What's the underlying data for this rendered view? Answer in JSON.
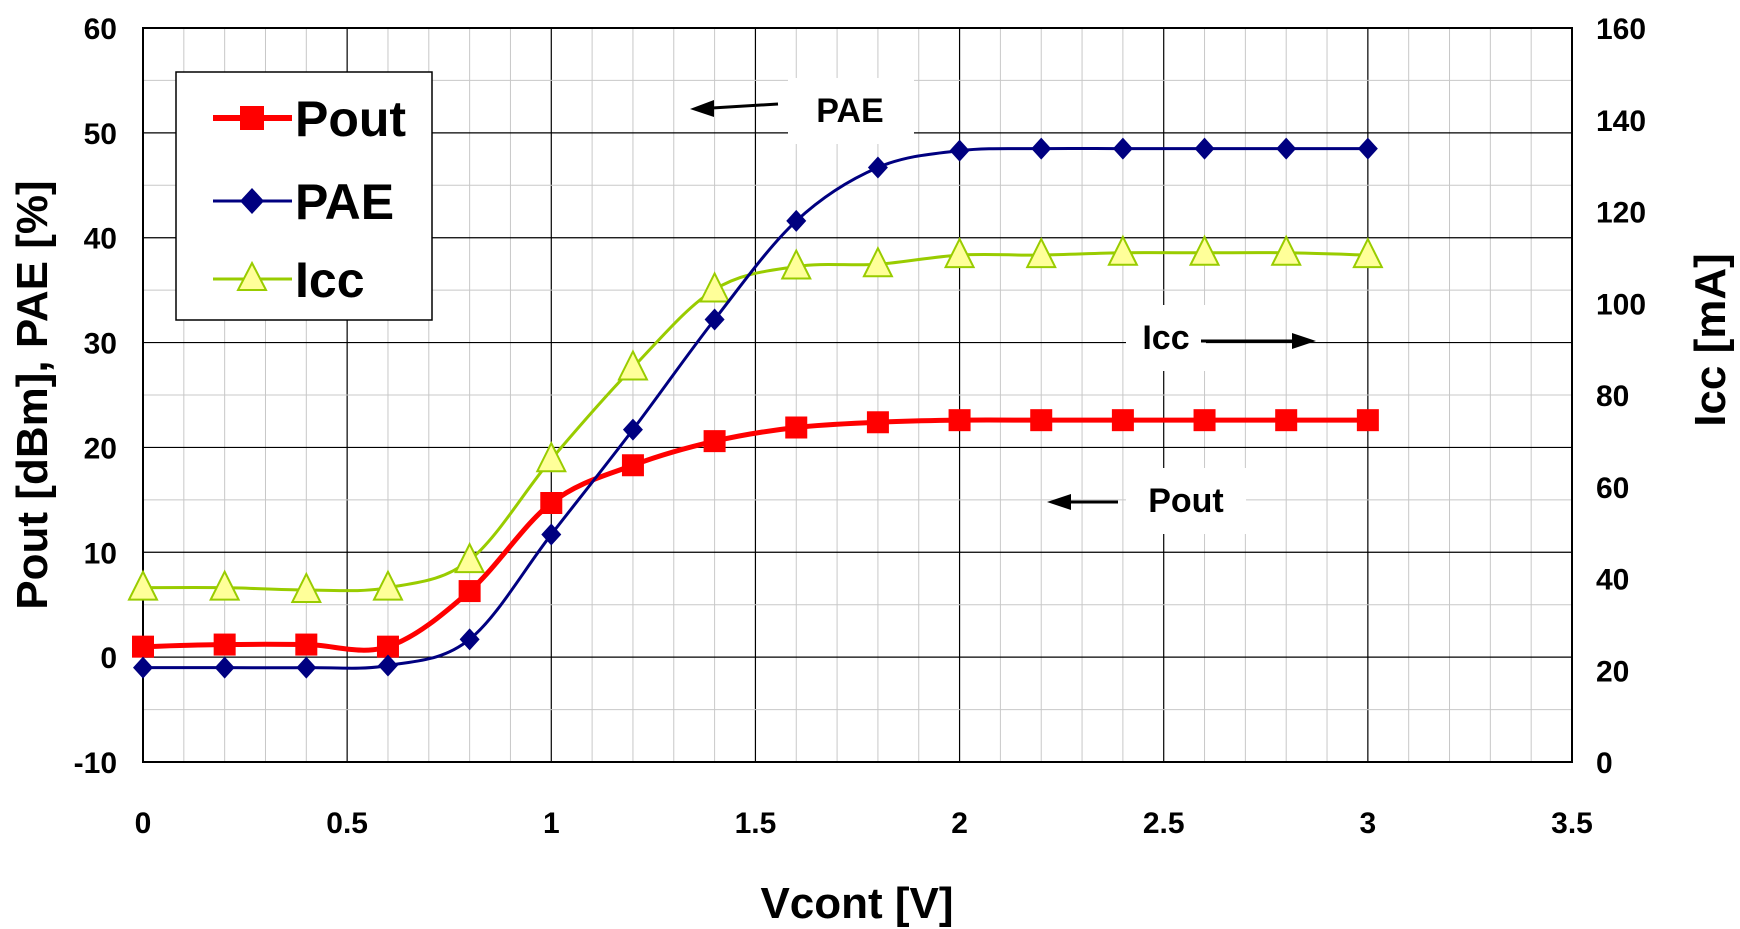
{
  "chart_data": {
    "type": "line",
    "title": "",
    "xlabel": "Vcont [V]",
    "ylabel": "Pout [dBm], PAE [%]",
    "y2label": "Icc [mA]",
    "xlim": [
      0,
      3.5
    ],
    "ylim": [
      -10,
      60
    ],
    "y2lim": [
      0,
      160
    ],
    "x_ticks": [
      "0",
      "0.5",
      "1",
      "1.5",
      "2",
      "2.5",
      "3",
      "3.5"
    ],
    "y_ticks": [
      "-10",
      "0",
      "10",
      "20",
      "30",
      "40",
      "50",
      "60"
    ],
    "y2_ticks": [
      "0",
      "20",
      "40",
      "60",
      "80",
      "100",
      "120",
      "140",
      "160"
    ],
    "grid": true,
    "legend_position": "top-left",
    "legend": [
      "Pout",
      "PAE",
      "Icc"
    ],
    "x": [
      0,
      0.2,
      0.4,
      0.6,
      0.8,
      1.0,
      1.2,
      1.4,
      1.6,
      1.8,
      2.0,
      2.2,
      2.4,
      2.6,
      2.8,
      3.0
    ],
    "series": [
      {
        "name": "Pout",
        "axis": "left",
        "color": "#ff0000",
        "marker": "square",
        "values": [
          1.0,
          1.2,
          1.2,
          1.0,
          6.3,
          14.7,
          18.3,
          20.6,
          21.9,
          22.4,
          22.6,
          22.6,
          22.6,
          22.6,
          22.6,
          22.6
        ]
      },
      {
        "name": "PAE",
        "axis": "left",
        "color": "#000080",
        "marker": "diamond",
        "values": [
          -1.0,
          -1.0,
          -1.0,
          -0.8,
          1.7,
          11.7,
          21.7,
          32.2,
          41.6,
          46.7,
          48.3,
          48.5,
          48.5,
          48.5,
          48.5,
          48.5
        ]
      },
      {
        "name": "Icc",
        "axis": "right",
        "color": "#99cc00",
        "marker": "triangle",
        "values": [
          38.0,
          38.0,
          37.5,
          38.0,
          44.0,
          66.0,
          86.0,
          103.0,
          108.0,
          108.5,
          110.5,
          110.5,
          111.0,
          111.0,
          111.0,
          110.5
        ]
      }
    ],
    "annotations": [
      {
        "text": "PAE",
        "arrow": "left"
      },
      {
        "text": "Icc",
        "arrow": "right"
      },
      {
        "text": "Pout",
        "arrow": "left"
      }
    ]
  }
}
